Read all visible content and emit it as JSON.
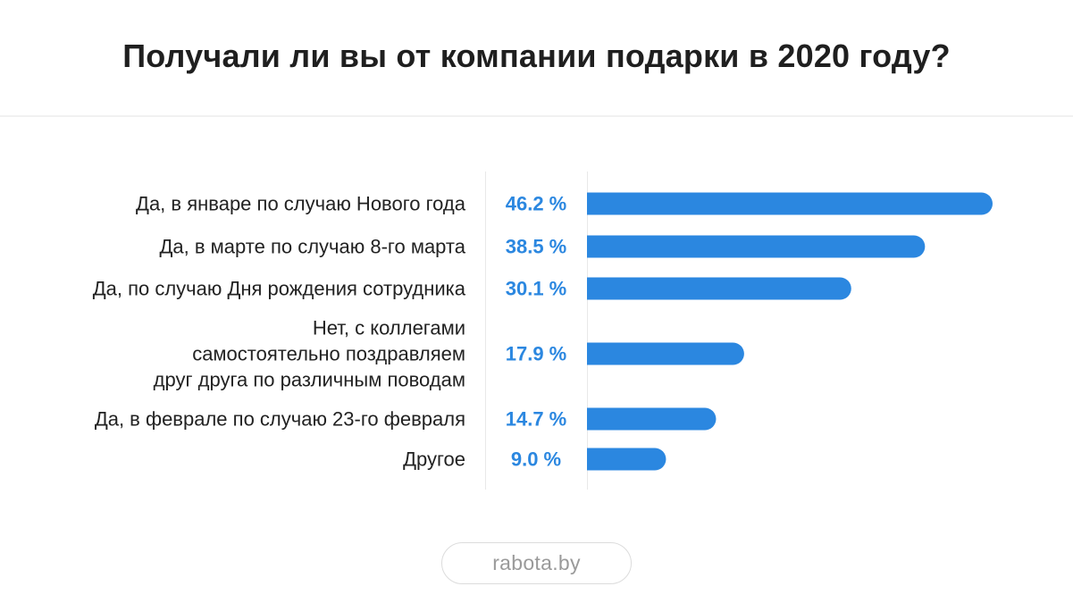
{
  "title": "Получали ли вы от компании подарки в 2020 году?",
  "footer": {
    "brand": "rabota.by"
  },
  "colors": {
    "bar": "#2b87e0",
    "value_text": "#2b87e0",
    "label_text": "#222222",
    "divider": "#e8e8e8"
  },
  "chart_data": {
    "type": "bar",
    "orientation": "horizontal",
    "title": "Получали ли вы от компании подарки в 2020 году?",
    "xlabel": "",
    "ylabel": "",
    "unit": "%",
    "xlim": [
      0,
      46.2
    ],
    "grid": false,
    "categories": [
      [
        "Да, в январе по случаю Нового года"
      ],
      [
        "Да, в марте по случаю 8-го марта"
      ],
      [
        "Да, по случаю Дня рождения сотрудника"
      ],
      [
        "Нет, с коллегами",
        "самостоятельно поздравляем",
        "друг друга по различным поводам"
      ],
      [
        "Да, в феврале по случаю 23-го февраля"
      ],
      [
        "Другое"
      ]
    ],
    "values": [
      46.2,
      38.5,
      30.1,
      17.9,
      14.7,
      9.0
    ],
    "value_labels": [
      "46.2 %",
      "38.5 %",
      "30.1 %",
      "17.9 %",
      "14.7 %",
      "9.0 %"
    ]
  }
}
